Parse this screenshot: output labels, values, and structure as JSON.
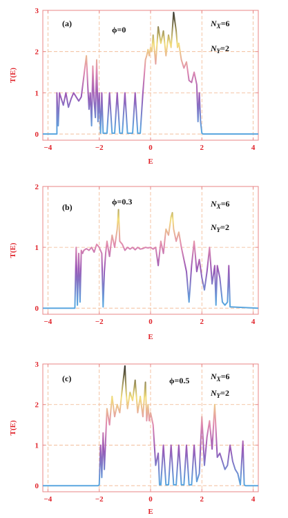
{
  "colors": {
    "axis": "#e88585",
    "grid": "#f0b48c",
    "tick_text": "#e0232a",
    "curve_low": "#5aa6df",
    "curve_mid": "#9b59b6",
    "curve_high": "#f2de7c",
    "curve_peak": "#2b2b2b"
  },
  "chart_data": [
    {
      "type": "line",
      "panel": "(a)",
      "phi_label": "ϕ=0",
      "nx_label": "N",
      "nx_sub": "X",
      "nx_val": "=6",
      "ny_label": "N",
      "ny_sub": "Y",
      "ny_val": "=2",
      "xlabel": "E",
      "ylabel": "T(E)",
      "xlim": [
        -4.2,
        4.2
      ],
      "ylim": [
        -0.15,
        3
      ],
      "xticks": [
        -4,
        -2,
        0,
        2,
        4
      ],
      "yticks": [
        0,
        1,
        2,
        3
      ],
      "grid": true,
      "x": [
        -4.2,
        -3.65,
        -3.65,
        -3.6,
        -3.55,
        -3.4,
        -3.3,
        -3.2,
        -3.1,
        -3.0,
        -2.9,
        -2.8,
        -2.7,
        -2.6,
        -2.5,
        -2.45,
        -2.4,
        -2.35,
        -2.3,
        -2.25,
        -2.2,
        -2.15,
        -2.1,
        -2.05,
        -2.0,
        -1.95,
        -1.9,
        -1.85,
        -1.8,
        -1.7,
        -1.6,
        -1.5,
        -1.4,
        -1.3,
        -1.2,
        -1.1,
        -1.0,
        -0.9,
        -0.8,
        -0.7,
        -0.6,
        -0.5,
        -0.4,
        -0.3,
        -0.2,
        -0.15,
        -0.1,
        -0.05,
        0.0,
        0.05,
        0.1,
        0.15,
        0.2,
        0.3,
        0.4,
        0.5,
        0.6,
        0.7,
        0.8,
        0.9,
        1.0,
        1.05,
        1.1,
        1.2,
        1.3,
        1.4,
        1.5,
        1.6,
        1.7,
        1.8,
        1.85,
        1.9,
        1.95,
        2.0,
        2.05,
        4.2
      ],
      "y": [
        0,
        0,
        1.0,
        0.2,
        1.0,
        0.7,
        1.0,
        0.65,
        0.85,
        1.0,
        0.9,
        0.8,
        0.9,
        1.4,
        1.9,
        1.2,
        0.6,
        1.0,
        0.2,
        1.65,
        0.8,
        0.4,
        1.8,
        0.3,
        1.0,
        0.02,
        1.0,
        0.02,
        0.02,
        0.02,
        1.0,
        0.02,
        0.02,
        1.0,
        0.02,
        0.02,
        1.0,
        0.02,
        0.02,
        0.02,
        1.0,
        0.02,
        0.02,
        1.0,
        1.8,
        1.9,
        2.05,
        1.9,
        2.1,
        2.0,
        2.4,
        2.05,
        1.7,
        2.6,
        2.2,
        2.5,
        1.9,
        2.4,
        2.1,
        2.95,
        2.5,
        2.1,
        2.2,
        1.8,
        1.6,
        1.75,
        1.3,
        1.25,
        1.5,
        1.2,
        0.3,
        1.0,
        0.3,
        0.02,
        0,
        0
      ]
    },
    {
      "type": "line",
      "panel": "(b)",
      "phi_label": "ϕ=0.3",
      "nx_label": "N",
      "nx_sub": "X",
      "nx_val": "=6",
      "ny_label": "N",
      "ny_sub": "Y",
      "ny_val": "=2",
      "xlabel": "E",
      "ylabel": "T(E)",
      "xlim": [
        -4.2,
        4.2
      ],
      "ylim": [
        -0.1,
        2
      ],
      "xticks": [
        -4,
        -2,
        0,
        2,
        4
      ],
      "yticks": [
        0,
        1,
        2
      ],
      "grid": true,
      "x": [
        -4.2,
        -2.95,
        -2.9,
        -2.85,
        -2.8,
        -2.75,
        -2.7,
        -2.65,
        -2.6,
        -2.5,
        -2.4,
        -2.3,
        -2.2,
        -2.1,
        -2.0,
        -1.9,
        -1.85,
        -1.8,
        -1.75,
        -1.7,
        -1.6,
        -1.5,
        -1.4,
        -1.3,
        -1.25,
        -1.2,
        -1.1,
        -1.0,
        -0.9,
        -0.8,
        -0.7,
        -0.6,
        -0.5,
        -0.4,
        -0.3,
        -0.2,
        -0.1,
        0.0,
        0.1,
        0.2,
        0.3,
        0.4,
        0.5,
        0.6,
        0.7,
        0.8,
        0.85,
        0.9,
        1.0,
        1.1,
        1.2,
        1.3,
        1.4,
        1.5,
        1.6,
        1.7,
        1.8,
        1.9,
        2.0,
        2.1,
        2.2,
        2.3,
        2.4,
        2.5,
        2.55,
        2.6,
        2.7,
        2.8,
        2.9,
        3.0,
        3.05,
        3.1,
        3.15,
        4.2
      ],
      "y": [
        0,
        0,
        1.0,
        0.05,
        0.9,
        0.1,
        0.95,
        0.9,
        0.95,
        0.98,
        0.95,
        1.0,
        0.92,
        1.05,
        1.0,
        0.9,
        0.02,
        0.6,
        0.9,
        1.1,
        0.85,
        1.2,
        1.0,
        1.3,
        1.62,
        1.1,
        1.05,
        0.95,
        1.0,
        0.97,
        1.0,
        0.96,
        1.0,
        0.97,
        0.98,
        1.0,
        0.99,
        1.0,
        0.97,
        1.0,
        0.7,
        1.1,
        0.9,
        1.3,
        1.2,
        1.5,
        1.57,
        1.3,
        1.1,
        1.25,
        1.0,
        0.8,
        0.6,
        0.1,
        0.7,
        1.1,
        0.6,
        0.8,
        0.5,
        0.3,
        0.6,
        1.0,
        0.4,
        0.7,
        0.05,
        0.7,
        0.5,
        0.1,
        0.05,
        0.1,
        0.7,
        0.02,
        0.02,
        0
      ]
    },
    {
      "type": "line",
      "panel": "(c)",
      "phi_label": "ϕ=0.5",
      "nx_label": "N",
      "nx_sub": "X",
      "nx_val": "=6",
      "ny_label": "N",
      "ny_sub": "Y",
      "ny_val": "=2",
      "xlabel": "E",
      "ylabel": "T(E)",
      "xlim": [
        -4.2,
        4.2
      ],
      "ylim": [
        -0.15,
        3
      ],
      "xticks": [
        -4,
        -2,
        0,
        2,
        4
      ],
      "yticks": [
        0,
        1,
        2,
        3
      ],
      "grid": true,
      "x": [
        -4.2,
        -2.05,
        -2.0,
        -1.95,
        -1.9,
        -1.85,
        -1.8,
        -1.7,
        -1.6,
        -1.5,
        -1.4,
        -1.3,
        -1.2,
        -1.1,
        -1.0,
        -0.95,
        -0.9,
        -0.8,
        -0.7,
        -0.6,
        -0.5,
        -0.4,
        -0.3,
        -0.2,
        -0.15,
        -0.1,
        -0.05,
        0.0,
        0.1,
        0.2,
        0.3,
        0.35,
        0.4,
        0.5,
        0.6,
        0.7,
        0.8,
        0.9,
        1.0,
        1.1,
        1.2,
        1.3,
        1.4,
        1.5,
        1.6,
        1.7,
        1.8,
        1.9,
        2.0,
        2.1,
        2.2,
        2.3,
        2.4,
        2.5,
        2.6,
        2.7,
        2.8,
        2.9,
        3.0,
        3.1,
        3.2,
        3.3,
        3.4,
        3.5,
        3.6,
        3.65,
        3.7,
        4.2
      ],
      "y": [
        0,
        0,
        0.02,
        1.0,
        0.2,
        1.3,
        0.4,
        1.9,
        1.5,
        2.2,
        1.7,
        2.0,
        1.8,
        2.4,
        2.95,
        2.3,
        1.9,
        2.3,
        2.1,
        2.6,
        1.8,
        2.2,
        1.7,
        2.55,
        1.6,
        2.0,
        1.6,
        1.8,
        1.5,
        0.5,
        0.8,
        0.02,
        0.02,
        1.0,
        0.02,
        0.02,
        1.0,
        0.02,
        0.02,
        1.0,
        0.02,
        0.02,
        1.0,
        0.02,
        0.02,
        1.0,
        0.1,
        0.3,
        1.7,
        0.5,
        1.2,
        1.6,
        0.9,
        2.0,
        0.7,
        0.8,
        0.6,
        0.4,
        0.5,
        1.0,
        0.6,
        0.4,
        0.3,
        0.02,
        1.1,
        0.02,
        0,
        0
      ]
    }
  ]
}
